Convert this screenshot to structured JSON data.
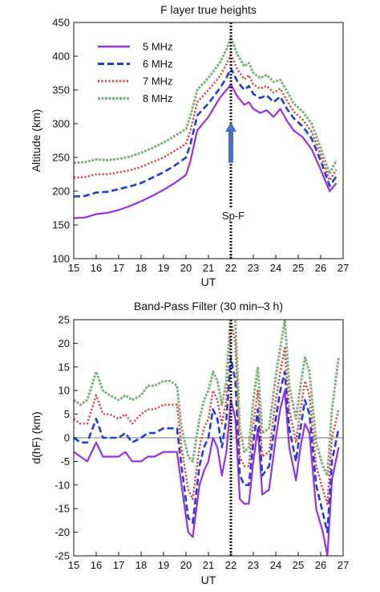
{
  "colors": {
    "5 MHz": "#9b30e0",
    "6 MHz": "#1e3ed8",
    "7 MHz": "#ee2d2d",
    "8 MHz": "#7fb07f",
    "arrow": "#4a6fc8"
  },
  "chart_data": [
    {
      "type": "line",
      "title": "F layer true heights",
      "xlabel": "UT",
      "ylabel": "Altitude (km)",
      "xlim": [
        15,
        27
      ],
      "ylim": [
        100,
        450
      ],
      "xticks": [
        15,
        16,
        17,
        18,
        19,
        20,
        21,
        22,
        23,
        24,
        25,
        26,
        27
      ],
      "yticks": [
        100,
        150,
        200,
        250,
        300,
        350,
        400,
        450
      ],
      "legend_position": "top-left",
      "annotation": {
        "text": "Sp-F",
        "x": 22,
        "arrow_from_y": 242,
        "arrow_to_y": 300
      },
      "vline_x": 22,
      "series": [
        {
          "name": "5 MHz",
          "style": "solid",
          "x": [
            15,
            15.5,
            16,
            16.5,
            17,
            17.5,
            18,
            18.5,
            19,
            19.5,
            20,
            20.2,
            20.5,
            21,
            21.5,
            21.8,
            22,
            22.3,
            22.6,
            22.8,
            23,
            23.3,
            23.6,
            23.9,
            24.2,
            24.5,
            24.8,
            25.2,
            25.6,
            26,
            26.4,
            26.7
          ],
          "y": [
            160,
            161,
            166,
            168,
            172,
            178,
            185,
            193,
            202,
            212,
            224,
            245,
            290,
            310,
            338,
            350,
            358,
            340,
            328,
            332,
            322,
            316,
            320,
            310,
            322,
            304,
            290,
            280,
            262,
            232,
            200,
            212
          ]
        },
        {
          "name": "6 MHz",
          "style": "dashed",
          "x": [
            15,
            15.5,
            16,
            16.5,
            17,
            17.5,
            18,
            18.5,
            19,
            19.5,
            20,
            20.2,
            20.5,
            21,
            21.5,
            21.8,
            22,
            22.3,
            22.6,
            22.8,
            23,
            23.3,
            23.6,
            23.9,
            24.2,
            24.5,
            24.8,
            25.2,
            25.6,
            26,
            26.4,
            26.7
          ],
          "y": [
            192,
            193,
            198,
            199,
            203,
            207,
            212,
            220,
            228,
            238,
            250,
            270,
            312,
            330,
            352,
            368,
            382,
            362,
            350,
            356,
            344,
            338,
            342,
            332,
            340,
            322,
            308,
            296,
            278,
            245,
            208,
            222
          ]
        },
        {
          "name": "7 MHz",
          "style": "dotted",
          "x": [
            15,
            15.5,
            16,
            16.5,
            17,
            17.5,
            18,
            18.5,
            19,
            19.5,
            20,
            20.2,
            20.5,
            21,
            21.5,
            21.8,
            22,
            22.3,
            22.6,
            22.8,
            23,
            23.3,
            23.6,
            23.9,
            24.2,
            24.5,
            24.8,
            25.2,
            25.6,
            26,
            26.4,
            26.7
          ],
          "y": [
            220,
            221,
            225,
            225,
            228,
            231,
            236,
            243,
            250,
            260,
            270,
            290,
            332,
            350,
            370,
            388,
            402,
            380,
            366,
            372,
            358,
            352,
            356,
            346,
            352,
            334,
            318,
            306,
            288,
            254,
            216,
            232
          ]
        },
        {
          "name": "8 MHz",
          "style": "dash-dot",
          "x": [
            15,
            15.5,
            16,
            16.5,
            17,
            17.5,
            18,
            18.5,
            19,
            19.5,
            20,
            20.2,
            20.5,
            21,
            21.5,
            21.8,
            22,
            22.3,
            22.6,
            22.8,
            23,
            23.3,
            23.6,
            23.9,
            24.2,
            24.5,
            24.8,
            25.2,
            25.6,
            26,
            26.4,
            26.7
          ],
          "y": [
            242,
            243,
            247,
            246,
            248,
            251,
            257,
            264,
            272,
            282,
            292,
            312,
            350,
            368,
            390,
            410,
            428,
            402,
            385,
            390,
            375,
            368,
            372,
            362,
            365,
            348,
            330,
            318,
            300,
            264,
            226,
            246
          ]
        }
      ]
    },
    {
      "type": "line",
      "title": "Band-Pass Filter (30 min–3 h)",
      "xlabel": "UT",
      "ylabel": "d(hF) (km)",
      "xlim": [
        15,
        27
      ],
      "ylim": [
        -25,
        25
      ],
      "xticks": [
        15,
        16,
        17,
        18,
        19,
        20,
        21,
        22,
        23,
        24,
        25,
        26,
        27
      ],
      "yticks": [
        -25,
        -20,
        -15,
        -10,
        -5,
        0,
        5,
        10,
        15,
        20,
        25
      ],
      "vline_x": 22,
      "zero_line": true,
      "series": [
        {
          "name": "5 MHz",
          "style": "solid",
          "x": [
            15,
            15.3,
            15.6,
            16,
            16.3,
            16.6,
            17,
            17.3,
            17.6,
            18,
            18.3,
            18.6,
            19,
            19.3,
            19.6,
            19.8,
            20.1,
            20.3,
            20.6,
            20.8,
            21,
            21.2,
            21.4,
            21.6,
            21.8,
            22,
            22.2,
            22.4,
            22.6,
            22.8,
            23,
            23.2,
            23.4,
            23.7,
            24,
            24.2,
            24.4,
            24.6,
            24.9,
            25.1,
            25.3,
            25.5,
            25.8,
            26.1,
            26.3,
            26.5,
            26.8
          ],
          "y": [
            -3,
            -4,
            -5,
            -1,
            -4,
            -4,
            -4,
            -3,
            -5,
            -5,
            -4,
            -4,
            -3,
            -3,
            -3,
            -10,
            -20,
            -21,
            -10,
            -7,
            -5,
            0,
            -2,
            -8,
            -3,
            8,
            4,
            -13,
            -14,
            -14,
            -5,
            2,
            -12,
            -11,
            0,
            6,
            10,
            -2,
            -9,
            -2,
            3,
            1,
            -15,
            -20,
            -25,
            -9,
            -2
          ]
        },
        {
          "name": "6 MHz",
          "style": "dashed",
          "x": [
            15,
            15.3,
            15.6,
            16,
            16.3,
            16.6,
            17,
            17.3,
            17.6,
            18,
            18.3,
            18.6,
            19,
            19.3,
            19.6,
            19.8,
            20.1,
            20.3,
            20.6,
            20.8,
            21,
            21.2,
            21.4,
            21.6,
            21.8,
            22,
            22.2,
            22.4,
            22.6,
            22.8,
            23,
            23.2,
            23.4,
            23.7,
            24,
            24.2,
            24.4,
            24.6,
            24.9,
            25.1,
            25.3,
            25.5,
            25.8,
            26.1,
            26.3,
            26.5,
            26.8
          ],
          "y": [
            0,
            -1,
            -1,
            4,
            0,
            0,
            0,
            1,
            -1,
            0,
            1,
            1,
            2,
            2,
            2,
            -6,
            -17,
            -18,
            -6,
            -2,
            0,
            6,
            4,
            -2,
            4,
            17,
            12,
            -8,
            -10,
            -10,
            -1,
            6,
            -8,
            -6,
            4,
            10,
            14,
            2,
            -5,
            2,
            8,
            5,
            -10,
            -16,
            -20,
            -5,
            2
          ]
        },
        {
          "name": "7 MHz",
          "style": "dotted",
          "x": [
            15,
            15.3,
            15.6,
            16,
            16.3,
            16.6,
            17,
            17.3,
            17.6,
            18,
            18.3,
            18.6,
            19,
            19.3,
            19.6,
            19.8,
            20.1,
            20.3,
            20.6,
            20.8,
            21,
            21.2,
            21.4,
            21.6,
            21.8,
            22,
            22.2,
            22.4,
            22.6,
            22.8,
            23,
            23.2,
            23.4,
            23.7,
            24,
            24.2,
            24.4,
            24.6,
            24.9,
            25.1,
            25.3,
            25.5,
            25.8,
            26.1,
            26.3,
            26.5,
            26.8
          ],
          "y": [
            4,
            3,
            3,
            9,
            5,
            5,
            4,
            5,
            3,
            5,
            6,
            6,
            7,
            7,
            7,
            -2,
            -11,
            -13,
            -2,
            2,
            4,
            10,
            8,
            3,
            8,
            25,
            20,
            -4,
            -6,
            -6,
            3,
            10,
            -4,
            -3,
            8,
            14,
            19,
            6,
            -1,
            6,
            12,
            9,
            -6,
            -11,
            -14,
            0,
            6
          ]
        },
        {
          "name": "8 MHz",
          "style": "dash-dot",
          "x": [
            15,
            15.3,
            15.6,
            16,
            16.3,
            16.6,
            17,
            17.3,
            17.6,
            18,
            18.3,
            18.6,
            19,
            19.3,
            19.6,
            19.8,
            20.1,
            20.3,
            20.6,
            20.8,
            21,
            21.2,
            21.4,
            21.6,
            21.8,
            22,
            22.2,
            22.4,
            22.6,
            22.8,
            23,
            23.2,
            23.4,
            23.7,
            24,
            24.2,
            24.4,
            24.6,
            24.9,
            25.1,
            25.3,
            25.5,
            25.8,
            26.1,
            26.3,
            26.5,
            26.8
          ],
          "y": [
            8,
            7,
            8,
            14,
            10,
            9,
            8,
            9,
            8,
            9,
            11,
            11,
            12,
            12,
            11,
            2,
            -4,
            -5,
            4,
            8,
            10,
            14,
            12,
            7,
            12,
            27,
            25,
            2,
            -3,
            -2,
            8,
            15,
            1,
            2,
            13,
            19,
            25,
            11,
            4,
            11,
            17,
            14,
            -1,
            -6,
            -8,
            6,
            17
          ]
        }
      ]
    }
  ]
}
